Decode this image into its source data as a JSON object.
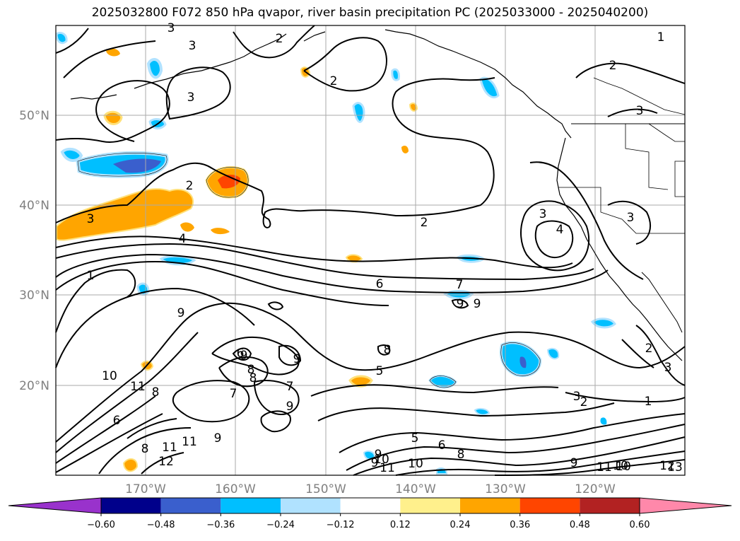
{
  "title": "2025032800 F072 850 hPa qvapor, river basin precipitation PC (2025033000 - 2025040200)",
  "map": {
    "lat_labels": [
      "50°N",
      "40°N",
      "30°N",
      "20°N"
    ],
    "lon_labels": [
      "170°W",
      "160°W",
      "150°W",
      "140°W",
      "130°W",
      "120°W"
    ],
    "gridline_color": "#aaaaaa",
    "label_color": "#808080"
  },
  "contour_labels": [
    "3",
    "2",
    "3",
    "2",
    "3",
    "3",
    "1",
    "2",
    "3",
    "2",
    "2",
    "4",
    "3",
    "4",
    "3",
    "6",
    "7",
    "9",
    "9",
    "1",
    "9",
    "9",
    "8",
    "6",
    "8",
    "7",
    "7",
    "5",
    "10",
    "11",
    "8",
    "6",
    "9",
    "9",
    "8",
    "9",
    "8",
    "2",
    "3",
    "3",
    "2",
    "1",
    "5",
    "6",
    "8",
    "9",
    "11",
    "10",
    "11",
    "11",
    "12",
    "10",
    "9",
    "13",
    "11",
    "10",
    "12",
    "9",
    "10"
  ],
  "colorbar": {
    "ticks": [
      "−0.60",
      "−0.48",
      "−0.36",
      "−0.24",
      "−0.12",
      "0.12",
      "0.24",
      "0.36",
      "0.48",
      "0.60"
    ],
    "colors": [
      "#9932cc",
      "#00008b",
      "#3a5fcd",
      "#00bfff",
      "#b0e2ff",
      "#ffffff",
      "#fff08c",
      "#ffa500",
      "#ff4500",
      "#b22222",
      "#ff88aa"
    ]
  }
}
